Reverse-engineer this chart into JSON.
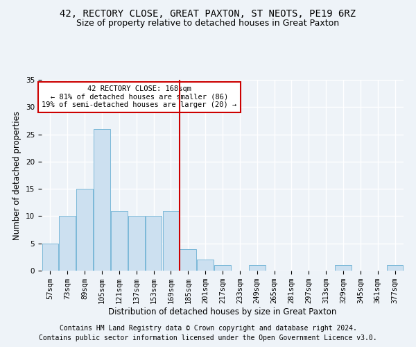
{
  "title1": "42, RECTORY CLOSE, GREAT PAXTON, ST NEOTS, PE19 6RZ",
  "title2": "Size of property relative to detached houses in Great Paxton",
  "xlabel": "Distribution of detached houses by size in Great Paxton",
  "ylabel": "Number of detached properties",
  "bin_labels": [
    "57sqm",
    "73sqm",
    "89sqm",
    "105sqm",
    "121sqm",
    "137sqm",
    "153sqm",
    "169sqm",
    "185sqm",
    "201sqm",
    "217sqm",
    "233sqm",
    "249sqm",
    "265sqm",
    "281sqm",
    "297sqm",
    "313sqm",
    "329sqm",
    "345sqm",
    "361sqm",
    "377sqm"
  ],
  "bar_values": [
    5,
    10,
    15,
    26,
    11,
    10,
    10,
    11,
    4,
    2,
    1,
    0,
    1,
    0,
    0,
    0,
    0,
    1,
    0,
    0,
    1
  ],
  "bar_color": "#cce0f0",
  "bar_edgecolor": "#7ab8d8",
  "property_bin_index": 7,
  "vline_color": "#cc0000",
  "annotation_text": "42 RECTORY CLOSE: 168sqm\n← 81% of detached houses are smaller (86)\n19% of semi-detached houses are larger (20) →",
  "annotation_box_edgecolor": "#cc0000",
  "annotation_box_facecolor": "#ffffff",
  "ylim": [
    0,
    35
  ],
  "yticks": [
    0,
    5,
    10,
    15,
    20,
    25,
    30,
    35
  ],
  "footer1": "Contains HM Land Registry data © Crown copyright and database right 2024.",
  "footer2": "Contains public sector information licensed under the Open Government Licence v3.0.",
  "bg_color": "#eef3f8",
  "plot_bg_color": "#eef3f8",
  "grid_color": "#ffffff",
  "title1_fontsize": 10,
  "title2_fontsize": 9,
  "xlabel_fontsize": 8.5,
  "ylabel_fontsize": 8.5,
  "tick_fontsize": 7.5,
  "annot_fontsize": 7.5,
  "footer_fontsize": 7
}
